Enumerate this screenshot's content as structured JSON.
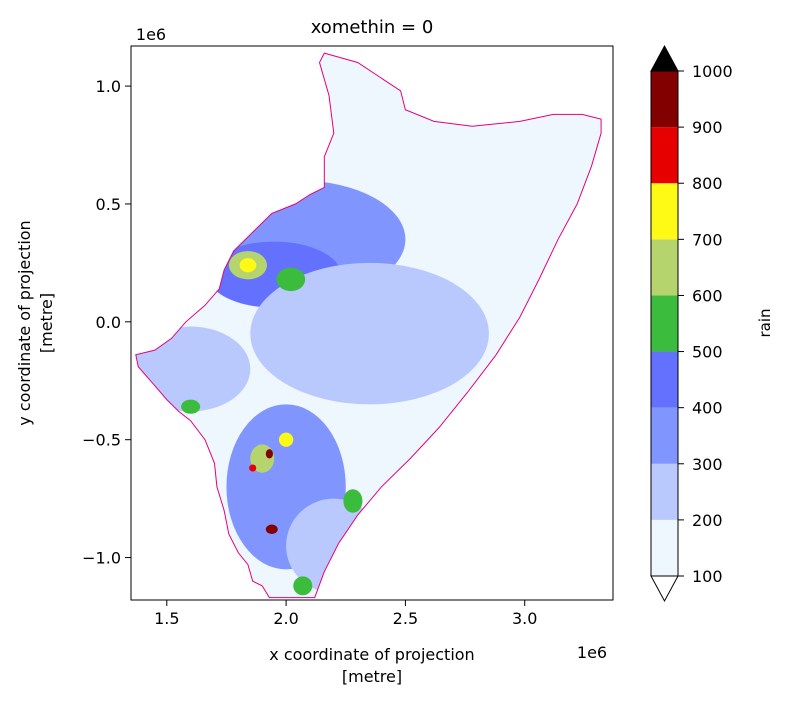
{
  "chart_data": {
    "type": "heatmap",
    "title": "xomethin = 0",
    "xlabel_line1": "x coordinate of projection",
    "xlabel_line2": "[metre]",
    "ylabel_line1": "y coordinate of projection",
    "ylabel_line2": "[metre]",
    "x_offset_text": "1e6",
    "y_offset_text": "1e6",
    "xlim": [
      1.35,
      3.37
    ],
    "ylim": [
      -1.18,
      1.17
    ],
    "x_ticks": [
      1.5,
      2.0,
      2.5,
      3.0
    ],
    "x_tick_labels": [
      "1.5",
      "2.0",
      "2.5",
      "3.0"
    ],
    "y_ticks": [
      1.0,
      0.5,
      0.0,
      -0.5,
      -1.0
    ],
    "y_tick_labels": [
      "1.0",
      "0.5",
      "0.0",
      "−0.5",
      "−1.0"
    ],
    "colorbar": {
      "label": "rain",
      "levels": [
        100,
        200,
        300,
        400,
        500,
        600,
        700,
        800,
        900,
        1000
      ],
      "level_labels": [
        "100",
        "200",
        "300",
        "400",
        "500",
        "600",
        "700",
        "800",
        "900",
        "1000"
      ],
      "colors": [
        "#eef6fe",
        "#b9c9fe",
        "#8096fe",
        "#6470fe",
        "#3cbc3c",
        "#b6d46e",
        "#fefa16",
        "#e60000",
        "#830000"
      ],
      "extend_min_color": "#ffffff",
      "extend_max_color": "#000000"
    },
    "outline_color": "#e6007e",
    "region": [
      [
        1.93,
        -1.17
      ],
      [
        1.9,
        -1.12
      ],
      [
        1.86,
        -1.1
      ],
      [
        1.84,
        -1.03
      ],
      [
        1.8,
        -0.98
      ],
      [
        1.76,
        -0.9
      ],
      [
        1.74,
        -0.8
      ],
      [
        1.71,
        -0.7
      ],
      [
        1.7,
        -0.6
      ],
      [
        1.66,
        -0.5
      ],
      [
        1.6,
        -0.42
      ],
      [
        1.55,
        -0.38
      ],
      [
        1.5,
        -0.33
      ],
      [
        1.44,
        -0.26
      ],
      [
        1.38,
        -0.19
      ],
      [
        1.37,
        -0.14
      ],
      [
        1.45,
        -0.12
      ],
      [
        1.52,
        -0.07
      ],
      [
        1.58,
        0.0
      ],
      [
        1.66,
        0.07
      ],
      [
        1.72,
        0.14
      ],
      [
        1.74,
        0.22
      ],
      [
        1.78,
        0.3
      ],
      [
        1.86,
        0.38
      ],
      [
        1.94,
        0.46
      ],
      [
        2.04,
        0.5
      ],
      [
        2.1,
        0.54
      ],
      [
        2.16,
        0.57
      ],
      [
        2.16,
        0.7
      ],
      [
        2.2,
        0.8
      ],
      [
        2.18,
        0.96
      ],
      [
        2.14,
        1.1
      ],
      [
        2.16,
        1.14
      ],
      [
        2.3,
        1.1
      ],
      [
        2.42,
        1.02
      ],
      [
        2.48,
        0.98
      ],
      [
        2.5,
        0.9
      ],
      [
        2.62,
        0.85
      ],
      [
        2.78,
        0.83
      ],
      [
        2.98,
        0.85
      ],
      [
        3.12,
        0.88
      ],
      [
        3.24,
        0.88
      ],
      [
        3.32,
        0.86
      ],
      [
        3.32,
        0.8
      ],
      [
        3.28,
        0.66
      ],
      [
        3.22,
        0.5
      ],
      [
        3.14,
        0.35
      ],
      [
        3.06,
        0.18
      ],
      [
        2.98,
        0.02
      ],
      [
        2.88,
        -0.14
      ],
      [
        2.76,
        -0.3
      ],
      [
        2.64,
        -0.45
      ],
      [
        2.52,
        -0.58
      ],
      [
        2.4,
        -0.7
      ],
      [
        2.3,
        -0.82
      ],
      [
        2.22,
        -0.94
      ],
      [
        2.16,
        -1.06
      ],
      [
        2.12,
        -1.17
      ]
    ],
    "rain_fields": [
      {
        "x": 2.6,
        "y": 0.4,
        "rx": 0.9,
        "ry": 0.5,
        "value": 120
      },
      {
        "x": 2.05,
        "y": 0.35,
        "rx": 0.45,
        "ry": 0.25,
        "value": 300
      },
      {
        "x": 1.95,
        "y": 0.2,
        "rx": 0.28,
        "ry": 0.14,
        "value": 420
      },
      {
        "x": 1.6,
        "y": -0.2,
        "rx": 0.25,
        "ry": 0.18,
        "value": 260
      },
      {
        "x": 2.35,
        "y": -0.05,
        "rx": 0.5,
        "ry": 0.3,
        "value": 230
      },
      {
        "x": 2.0,
        "y": -0.7,
        "rx": 0.25,
        "ry": 0.35,
        "value": 330
      },
      {
        "x": 2.2,
        "y": -0.95,
        "rx": 0.2,
        "ry": 0.2,
        "value": 280
      },
      {
        "x": 1.84,
        "y": 0.24,
        "rx": 0.08,
        "ry": 0.06,
        "value": 620
      },
      {
        "x": 1.84,
        "y": 0.24,
        "rx": 0.035,
        "ry": 0.03,
        "value": 760
      },
      {
        "x": 2.02,
        "y": 0.18,
        "rx": 0.06,
        "ry": 0.05,
        "value": 560
      },
      {
        "x": 1.9,
        "y": -0.58,
        "rx": 0.05,
        "ry": 0.06,
        "value": 640
      },
      {
        "x": 1.93,
        "y": -0.56,
        "rx": 0.015,
        "ry": 0.02,
        "value": 950
      },
      {
        "x": 1.86,
        "y": -0.62,
        "rx": 0.015,
        "ry": 0.015,
        "value": 850
      },
      {
        "x": 2.0,
        "y": -0.5,
        "rx": 0.03,
        "ry": 0.03,
        "value": 720
      },
      {
        "x": 1.94,
        "y": -0.88,
        "rx": 0.025,
        "ry": 0.02,
        "value": 950
      },
      {
        "x": 2.28,
        "y": -0.76,
        "rx": 0.04,
        "ry": 0.05,
        "value": 560
      },
      {
        "x": 1.6,
        "y": -0.36,
        "rx": 0.04,
        "ry": 0.03,
        "value": 520
      },
      {
        "x": 2.07,
        "y": -1.12,
        "rx": 0.04,
        "ry": 0.04,
        "value": 520
      }
    ]
  }
}
